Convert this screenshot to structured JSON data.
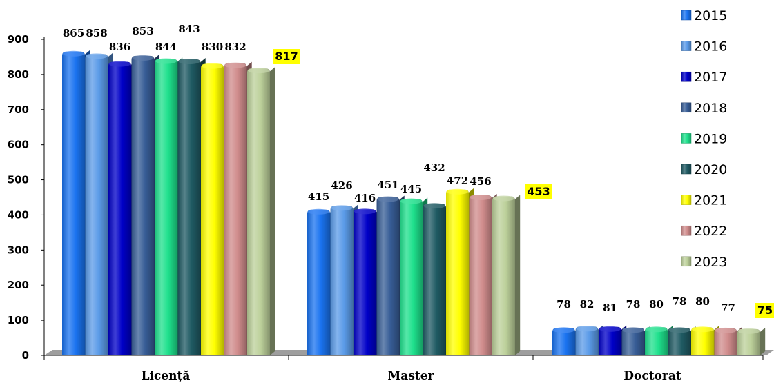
{
  "chart_data": {
    "type": "bar",
    "title": "",
    "xlabel": "",
    "ylabel": "",
    "ylim": [
      0,
      900
    ],
    "yticks": [
      0,
      100,
      200,
      300,
      400,
      500,
      600,
      700,
      800,
      900
    ],
    "grid": false,
    "legend_position": "right",
    "categories": [
      "Licență",
      "Master",
      "Doctorat"
    ],
    "series": [
      {
        "name": "2015",
        "color": "#1a73f0",
        "values": [
          865,
          415,
          78
        ]
      },
      {
        "name": "2016",
        "color": "#5b9be8",
        "values": [
          858,
          426,
          82
        ]
      },
      {
        "name": "2017",
        "color": "#0000c8",
        "values": [
          836,
          416,
          81
        ]
      },
      {
        "name": "2018",
        "color": "#375d96",
        "values": [
          853,
          451,
          78
        ]
      },
      {
        "name": "2019",
        "color": "#1ee08c",
        "values": [
          844,
          445,
          80
        ]
      },
      {
        "name": "2020",
        "color": "#1f5a63",
        "values": [
          843,
          432,
          78
        ]
      },
      {
        "name": "2021",
        "color": "#ffff00",
        "values": [
          830,
          472,
          80
        ]
      },
      {
        "name": "2022",
        "color": "#d08c8c",
        "values": [
          832,
          456,
          77
        ]
      },
      {
        "name": "2023",
        "color": "#bcd09a",
        "values": [
          817,
          453,
          75
        ]
      }
    ],
    "highlight_series": "2023",
    "highlight_color": "#ffff00"
  }
}
